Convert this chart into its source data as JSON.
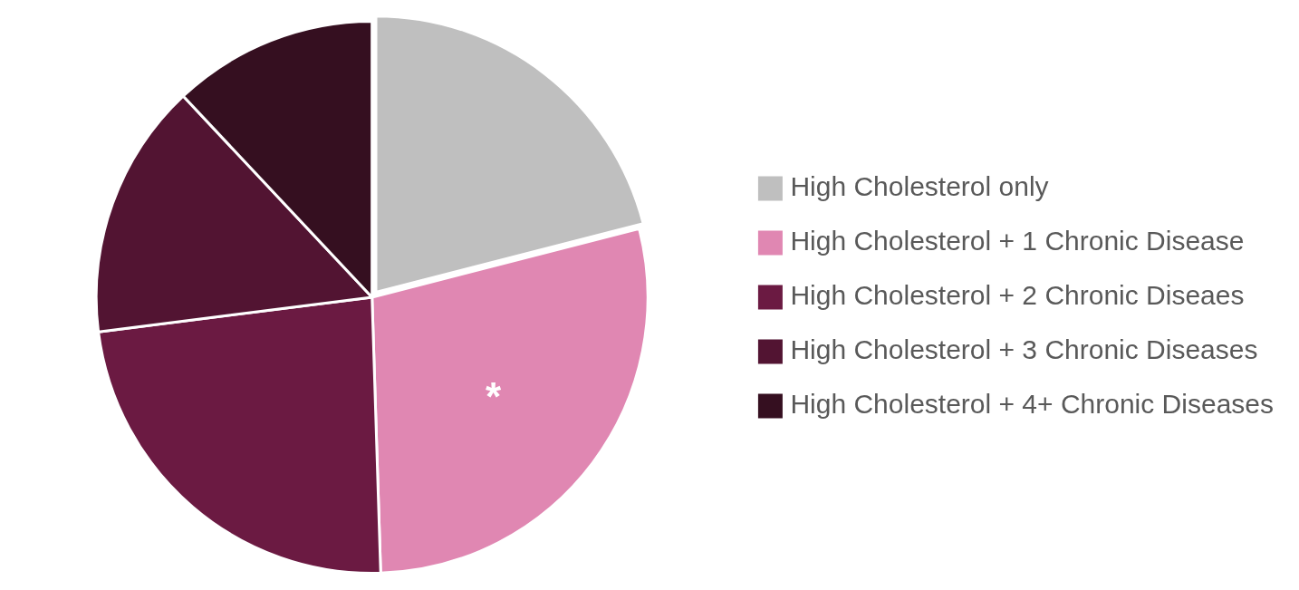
{
  "chart_data": {
    "type": "pie",
    "categories": [
      "High Cholesterol only",
      "High Cholesterol + 1 Chronic Disease",
      "High Cholesterol + 2 Chronic Diseaes",
      "High Cholesterol + 3 Chronic Diseases",
      "High Cholesterol + 4+ Chronic Diseases"
    ],
    "values": [
      21,
      28.5,
      23.5,
      15,
      12
    ],
    "colors": [
      "#bfbfbf",
      "#e087b2",
      "#6b1a42",
      "#521432",
      "#350f20"
    ],
    "legend": "right",
    "annotations": [
      {
        "text": "*",
        "x": "High Cholesterol + 1 Chronic Disease"
      }
    ]
  }
}
